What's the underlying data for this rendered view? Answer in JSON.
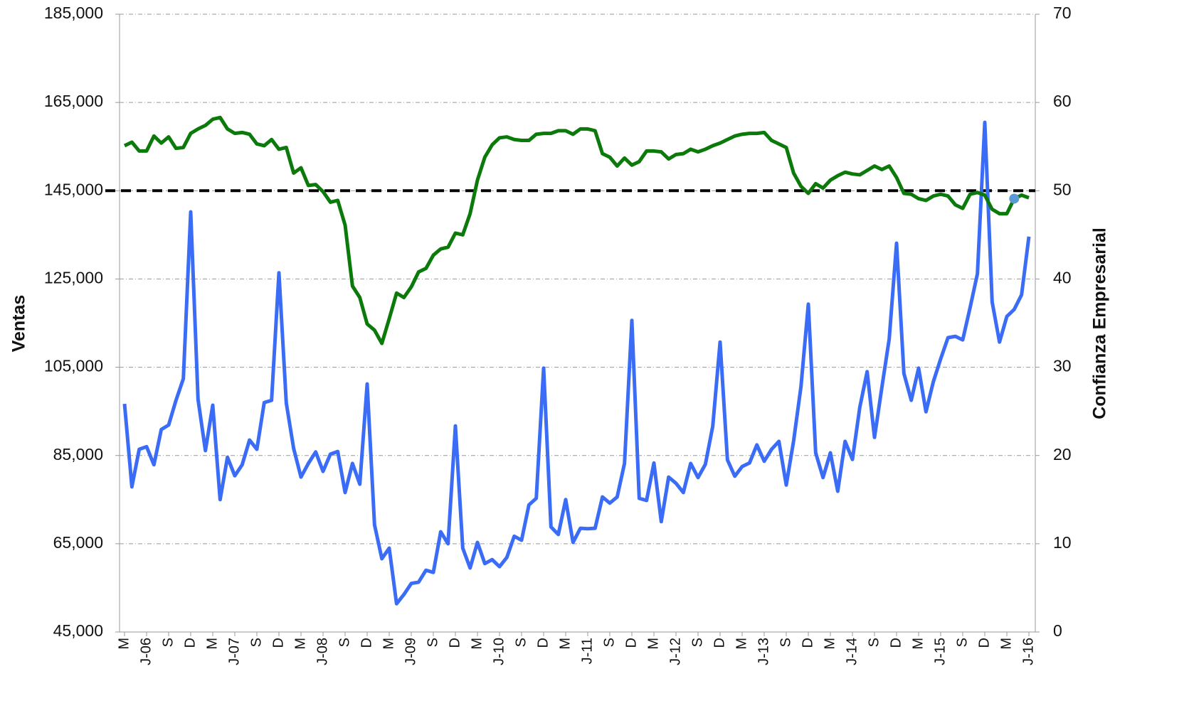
{
  "chart_data": {
    "type": "line",
    "y_axis_label": "Ventas",
    "y2_axis_label": "Confianza Empresarial",
    "categories": [
      "M",
      null,
      null,
      "J-06",
      null,
      null,
      "S",
      null,
      null,
      "D",
      null,
      null,
      "M",
      null,
      null,
      "J-07",
      null,
      null,
      "S",
      null,
      null,
      "D",
      null,
      null,
      "M",
      null,
      null,
      "J-08",
      null,
      null,
      "S",
      null,
      null,
      "D",
      null,
      null,
      "M",
      null,
      null,
      "J-09",
      null,
      null,
      "S",
      null,
      null,
      "D",
      null,
      null,
      "M",
      null,
      null,
      "J-10",
      null,
      null,
      "S",
      null,
      null,
      "D",
      null,
      null,
      "M",
      null,
      null,
      "J-11",
      null,
      null,
      "S",
      null,
      null,
      "D",
      null,
      null,
      "M",
      null,
      null,
      "J-12",
      null,
      null,
      "S",
      null,
      null,
      "D",
      null,
      null,
      "M",
      null,
      null,
      "J-13",
      null,
      null,
      "S",
      null,
      null,
      "D",
      null,
      null,
      "M",
      null,
      null,
      "J-14",
      null,
      null,
      "S",
      null,
      null,
      "D",
      null,
      null,
      "M",
      null,
      null,
      "J-15",
      null,
      null,
      "S",
      null,
      null,
      "D",
      null,
      null,
      "M",
      null,
      null,
      "J-16"
    ],
    "series": [
      {
        "name": "Ventas",
        "color": "#3b6cf6",
        "axis": "y",
        "values": [
          96700,
          77900,
          86400,
          87000,
          82900,
          90900,
          91900,
          97500,
          102400,
          140200,
          97700,
          86100,
          96400,
          75000,
          84600,
          80400,
          82900,
          88500,
          86400,
          97000,
          97500,
          126400,
          96900,
          86600,
          80100,
          83200,
          85800,
          81400,
          85300,
          85900,
          76600,
          83200,
          78500,
          101200,
          69300,
          61600,
          64000,
          51400,
          53500,
          56000,
          56300,
          59000,
          58500,
          67700,
          65000,
          91700,
          64000,
          59500,
          65300,
          60500,
          61400,
          59800,
          61900,
          66700,
          65800,
          73800,
          75300,
          104800,
          68800,
          67100,
          75000,
          65300,
          68500,
          68400,
          68500,
          75600,
          74200,
          75600,
          83200,
          115600,
          75300,
          74800,
          83300,
          70000,
          80100,
          78700,
          76600,
          83200,
          80000,
          83000,
          91600,
          110700,
          84000,
          80300,
          82500,
          83300,
          87400,
          83700,
          86400,
          88200,
          78300,
          88300,
          100600,
          119300,
          85600,
          80000,
          85600,
          76900,
          88200,
          84100,
          95900,
          104000,
          89100,
          100400,
          111400,
          133100,
          103600,
          97500,
          104800,
          94900,
          101700,
          106900,
          111700,
          112000,
          111200,
          118500,
          126200,
          160500,
          119800,
          110700,
          116500,
          118100,
          121400,
          134600
        ]
      },
      {
        "name": "Confianza Empresarial",
        "color": "#0b7a0b",
        "axis": "y2",
        "highlight_index": 121,
        "highlight_color": "#5b9bd5",
        "values": [
          55.1,
          55.5,
          54.5,
          54.5,
          56.2,
          55.4,
          56.1,
          54.8,
          54.9,
          56.5,
          57.0,
          57.4,
          58.1,
          58.3,
          57.0,
          56.5,
          56.6,
          56.4,
          55.3,
          55.1,
          55.8,
          54.7,
          54.9,
          52.0,
          52.6,
          50.6,
          50.7,
          49.9,
          48.7,
          48.9,
          46.1,
          39.2,
          37.9,
          34.9,
          34.2,
          32.7,
          35.5,
          38.4,
          37.9,
          39.1,
          40.8,
          41.2,
          42.7,
          43.4,
          43.6,
          45.2,
          45.0,
          47.4,
          51.2,
          53.8,
          55.2,
          56.0,
          56.1,
          55.8,
          55.7,
          55.7,
          56.4,
          56.5,
          56.5,
          56.8,
          56.8,
          56.4,
          57.0,
          57.0,
          56.8,
          54.2,
          53.8,
          52.8,
          53.7,
          52.9,
          53.3,
          54.5,
          54.5,
          54.4,
          53.6,
          54.1,
          54.2,
          54.7,
          54.4,
          54.7,
          55.1,
          55.4,
          55.8,
          56.2,
          56.4,
          56.5,
          56.5,
          56.6,
          55.7,
          55.3,
          54.9,
          52.0,
          50.5,
          49.7,
          50.8,
          50.3,
          51.2,
          51.7,
          52.1,
          51.9,
          51.8,
          52.3,
          52.8,
          52.4,
          52.8,
          51.5,
          49.7,
          49.6,
          49.1,
          48.9,
          49.4,
          49.6,
          49.4,
          48.4,
          48.0,
          49.6,
          49.8,
          49.5,
          47.9,
          47.4,
          47.4,
          49.1,
          49.5,
          49.2
        ]
      }
    ],
    "reference_line": {
      "axis": "y2",
      "value": 50,
      "color": "#000000"
    },
    "ylim": [
      45000,
      185000
    ],
    "yticks": [
      {
        "value": 45000,
        "label": "45,000"
      },
      {
        "value": 65000,
        "label": "65,000"
      },
      {
        "value": 85000,
        "label": "85,000"
      },
      {
        "value": 105000,
        "label": "105,000"
      },
      {
        "value": 125000,
        "label": "125,000"
      },
      {
        "value": 145000,
        "label": "145,000"
      },
      {
        "value": 165000,
        "label": "165,000"
      },
      {
        "value": 185000,
        "label": "185,000"
      }
    ],
    "y2lim": [
      0,
      70
    ],
    "y2ticks": [
      0,
      10,
      20,
      30,
      40,
      50,
      60,
      70
    ],
    "grid": true
  }
}
